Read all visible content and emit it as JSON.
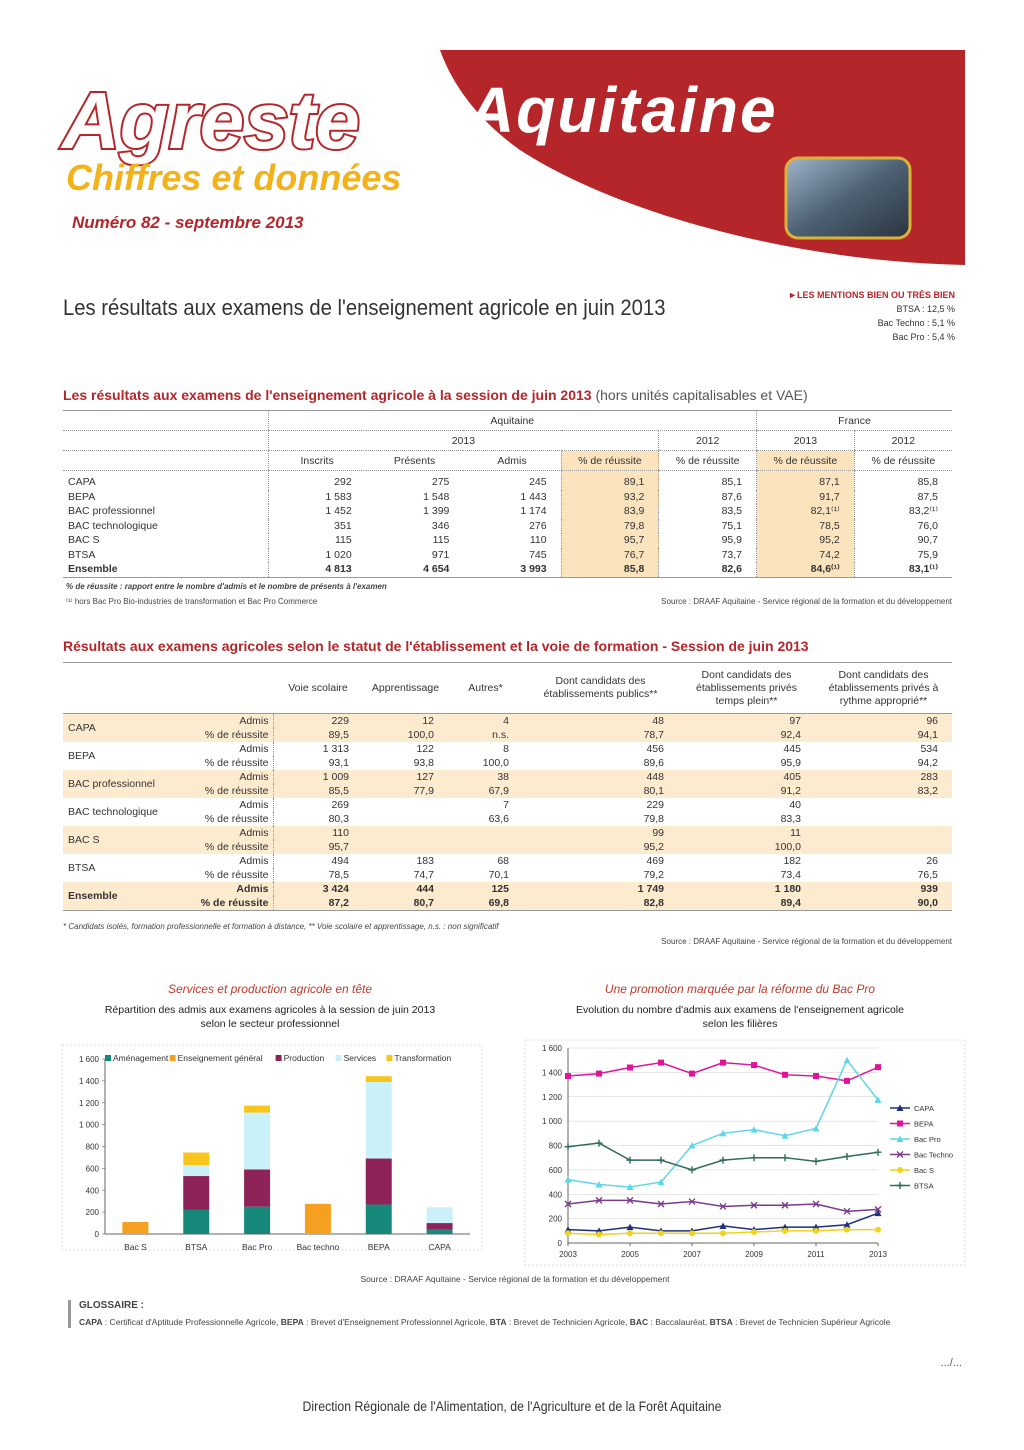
{
  "header": {
    "brand": "Agreste",
    "region": "Aquitaine",
    "subtitle": "Chiffres et données",
    "issue": "Numéro 82 - septembre 2013"
  },
  "main_title": "Les résultats aux examens de l'enseignement agricole en juin 2013",
  "mentions": {
    "title": "►LES MENTIONS BIEN OU TRÈS BIEN",
    "items": [
      "BTSA : 12,5 %",
      "Bac Techno : 5,1 %",
      "Bac Pro : 5,4 %"
    ]
  },
  "table1": {
    "title": "Les résultats aux examens de l'enseignement agricole à la session de juin 2013",
    "title_note": "(hors unités capitalisables et VAE)",
    "groups": [
      "Aquitaine",
      "France"
    ],
    "years": [
      "2013",
      "2012",
      "2013",
      "2012"
    ],
    "columns": [
      "Inscrits",
      "Présents",
      "Admis",
      "% de réussite",
      "% de réussite",
      "% de réussite",
      "% de réussite"
    ],
    "rows": [
      [
        "CAPA",
        "292",
        "275",
        "245",
        "89,1",
        "85,1",
        "87,1",
        "85,8"
      ],
      [
        "BEPA",
        "1 583",
        "1 548",
        "1 443",
        "93,2",
        "87,6",
        "91,7",
        "87,5"
      ],
      [
        "BAC professionnel",
        "1 452",
        "1 399",
        "1 174",
        "83,9",
        "83,5",
        "82,1⁽¹⁾",
        "83,2⁽¹⁾"
      ],
      [
        "BAC technologique",
        "351",
        "346",
        "276",
        "79,8",
        "75,1",
        "78,5",
        "76,0"
      ],
      [
        "BAC S",
        "115",
        "115",
        "110",
        "95,7",
        "95,9",
        "95,2",
        "90,7"
      ],
      [
        "BTSA",
        "1 020",
        "971",
        "745",
        "76,7",
        "73,7",
        "74,2",
        "75,9"
      ],
      [
        "Ensemble",
        "4 813",
        "4 654",
        "3 993",
        "85,8",
        "82,6",
        "84,6⁽¹⁾",
        "83,1⁽¹⁾"
      ]
    ],
    "notes": [
      "% de réussite : rapport entre le nombre d'admis et le nombre de présents à l'examen",
      "⁽¹⁾ hors Bac Pro Bio-industries de transformation et Bac Pro Commerce"
    ],
    "source": "Source : DRAAF Aquitaine - Service régional de la formation et du développement"
  },
  "table2": {
    "title": "Résultats aux examens agricoles selon le statut de l'établissement et la voie de formation - Session de juin 2013",
    "columns": [
      "Voie scolaire",
      "Apprentissage",
      "Autres*",
      "Dont candidats des établissements publics**",
      "Dont candidats des établissements privés temps plein**",
      "Dont candidats des établissements privés à rythme approprié**"
    ],
    "sublabels": [
      "Admis",
      "% de réussite"
    ],
    "rows": [
      {
        "label": "CAPA",
        "admis": [
          "229",
          "12",
          "4",
          "48",
          "97",
          "96"
        ],
        "rate": [
          "89,5",
          "100,0",
          "n.s.",
          "78,7",
          "92,4",
          "94,1"
        ]
      },
      {
        "label": "BEPA",
        "admis": [
          "1 313",
          "122",
          "8",
          "456",
          "445",
          "534"
        ],
        "rate": [
          "93,1",
          "93,8",
          "100,0",
          "89,6",
          "95,9",
          "94,2"
        ]
      },
      {
        "label": "BAC professionnel",
        "admis": [
          "1 009",
          "127",
          "38",
          "448",
          "405",
          "283"
        ],
        "rate": [
          "85,5",
          "77,9",
          "67,9",
          "80,1",
          "91,2",
          "83,2"
        ]
      },
      {
        "label": "BAC technologique",
        "admis": [
          "269",
          null,
          "7",
          "229",
          "40",
          null
        ],
        "rate": [
          "80,3",
          null,
          "63,6",
          "79,8",
          "83,3",
          null
        ]
      },
      {
        "label": "BAC S",
        "admis": [
          "110",
          null,
          null,
          "99",
          "11",
          null
        ],
        "rate": [
          "95,7",
          null,
          null,
          "95,2",
          "100,0",
          null
        ]
      },
      {
        "label": "BTSA",
        "admis": [
          "494",
          "183",
          "68",
          "469",
          "182",
          "26"
        ],
        "rate": [
          "78,5",
          "74,7",
          "70,1",
          "79,2",
          "73,4",
          "76,5"
        ]
      },
      {
        "label": "Ensemble",
        "admis": [
          "3 424",
          "444",
          "125",
          "1 749",
          "1 180",
          "939"
        ],
        "rate": [
          "87,2",
          "80,7",
          "69,8",
          "82,8",
          "89,4",
          "90,0"
        ]
      }
    ],
    "note": "* Candidats isolés, formation professionnelle et formation à distance, ** Voie scolaire et apprentissage, n.s. : non significatif",
    "source": "Source : DRAAF Aquitaine - Service régional de la formation et du développement"
  },
  "chart_data": [
    {
      "type": "stacked_bar",
      "title": "Services et production agricole en tête",
      "subtitle": [
        "Répartition des admis aux examens agricoles à la session de juin 2013",
        "selon le secteur professionnel"
      ],
      "categories": [
        "Bac S",
        "BTSA",
        "Bac Pro",
        "Bac techno",
        "BEPA",
        "CAPA"
      ],
      "series": [
        {
          "name": "Aménagement",
          "color": "#16897a",
          "values": [
            0,
            220,
            250,
            0,
            270,
            40
          ]
        },
        {
          "name": "Enseignement général",
          "color": "#f5a020",
          "values": [
            110,
            0,
            0,
            276,
            0,
            0
          ]
        },
        {
          "name": "Production",
          "color": "#8e2358",
          "values": [
            0,
            310,
            340,
            0,
            420,
            60
          ]
        },
        {
          "name": "Services",
          "color": "#c9f1f7",
          "values": [
            0,
            100,
            520,
            0,
            700,
            145
          ]
        },
        {
          "name": "Transformation",
          "color": "#f7c51e",
          "values": [
            0,
            115,
            64,
            0,
            53,
            0
          ]
        }
      ],
      "ylim": [
        0,
        1600
      ],
      "yticks": [
        0,
        200,
        400,
        600,
        800,
        {
          "value": 1000,
          "label": "1 000"
        },
        {
          "value": 1200,
          "label": "1 200"
        },
        {
          "value": 1400,
          "label": "1 400"
        },
        {
          "value": 1600,
          "label": "1 600"
        }
      ],
      "legend": "top"
    },
    {
      "type": "line",
      "title": "Une promotion marquée par la réforme du Bac Pro",
      "subtitle": [
        "Evolution du nombre d'admis aux examens de l'enseignement agricole",
        "selon les filières"
      ],
      "x": [
        2003,
        2004,
        2005,
        2006,
        2007,
        2008,
        2009,
        2010,
        2011,
        2012,
        2013
      ],
      "series": [
        {
          "name": "CAPA",
          "color": "#1f2f7a",
          "marker": "triangle",
          "values": [
            110,
            100,
            130,
            100,
            100,
            140,
            110,
            130,
            130,
            150,
            245
          ]
        },
        {
          "name": "BEPA",
          "color": "#e0149a",
          "marker": "square",
          "values": [
            1370,
            1390,
            1440,
            1480,
            1390,
            1480,
            1460,
            1380,
            1370,
            1330,
            1443
          ]
        },
        {
          "name": "Bac Pro",
          "color": "#5fd6e8",
          "marker": "triangle",
          "values": [
            520,
            480,
            460,
            500,
            800,
            900,
            930,
            880,
            940,
            1500,
            1174
          ]
        },
        {
          "name": "Bac Techno",
          "color": "#7a3b8c",
          "marker": "cross",
          "values": [
            320,
            350,
            350,
            320,
            340,
            300,
            310,
            310,
            320,
            260,
            276
          ]
        },
        {
          "name": "Bac S",
          "color": "#f2d21a",
          "marker": "circle",
          "values": [
            80,
            70,
            80,
            80,
            80,
            80,
            90,
            100,
            100,
            110,
            110
          ]
        },
        {
          "name": "BTSA",
          "color": "#2f6b56",
          "marker": "plus",
          "values": [
            790,
            820,
            680,
            680,
            600,
            680,
            700,
            700,
            670,
            710,
            745
          ]
        }
      ],
      "xlim": [
        2003,
        2013
      ],
      "xticks": [
        2003,
        2005,
        2007,
        2009,
        2011,
        2013
      ],
      "ylim": [
        0,
        1600
      ],
      "yticks": [
        0,
        200,
        400,
        600,
        800,
        {
          "value": 1000,
          "label": "1 000"
        },
        {
          "value": 1200,
          "label": "1 200"
        },
        {
          "value": 1400,
          "label": "1 400"
        },
        {
          "value": 1600,
          "label": "1 600"
        }
      ],
      "legend": "right"
    }
  ],
  "charts_source": "Source :  DRAAF Aquitaine - Service régional de la formation et du développement",
  "glossary": {
    "title": "GLOSSAIRE :",
    "terms": [
      {
        "term": "CAPA",
        "def": " : Certificat d'Aptitude Professionnelle Agricole, "
      },
      {
        "term": "BEPA",
        "def": " : Brevet d'Enseignement Professionnel Agricole, "
      },
      {
        "term": "BTA",
        "def": " : Brevet de Technicien Agricole, "
      },
      {
        "term": "BAC",
        "def": " : Baccalauréat, "
      },
      {
        "term": "BTSA",
        "def": " : Brevet de Technicien Supérieur Agricole"
      }
    ]
  },
  "pager": ".../...",
  "footer": "Direction Régionale de l'Alimentation, de l'Agriculture et de la Forêt Aquitaine"
}
